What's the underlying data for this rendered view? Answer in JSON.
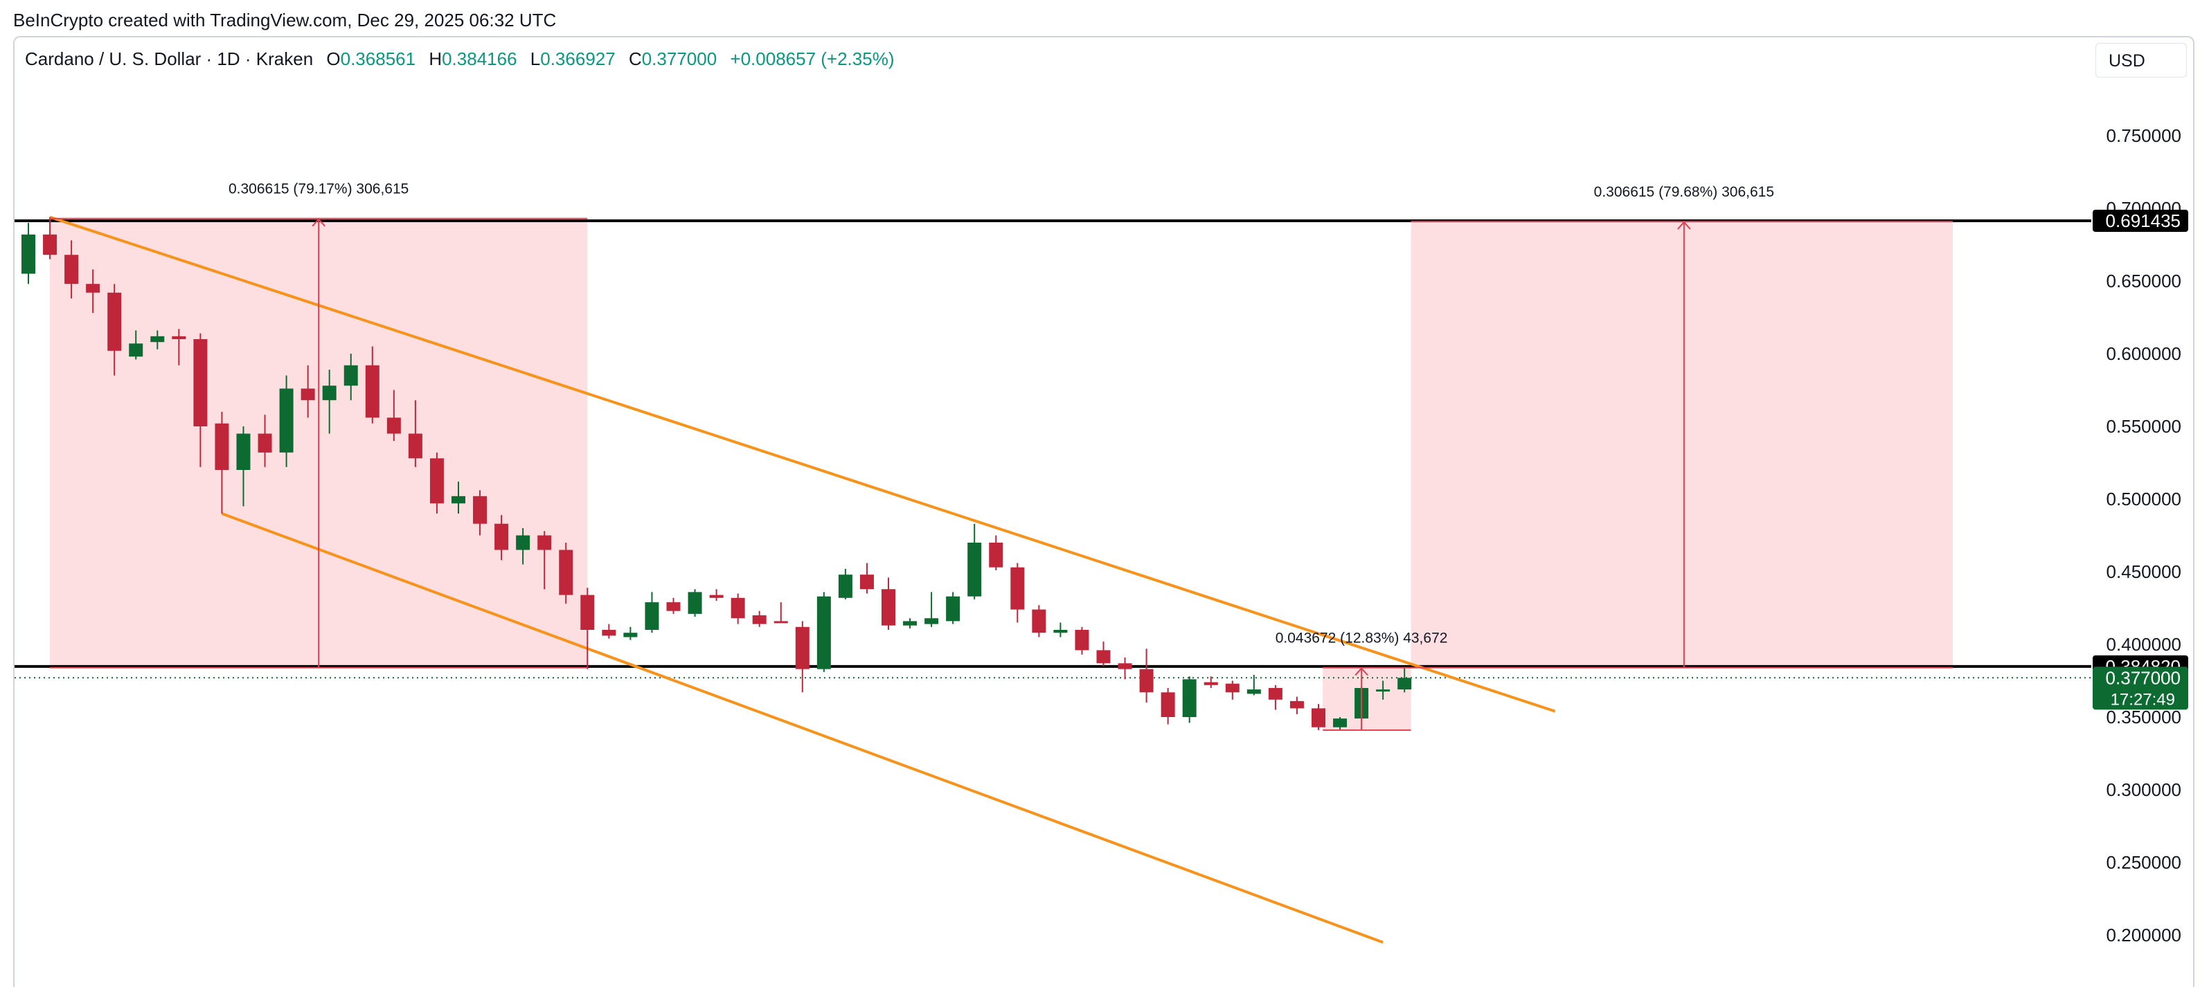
{
  "credit": "BeInCrypto created with TradingView.com, Dec 29, 2025 06:32 UTC",
  "header": {
    "symbol": "Cardano / U. S. Dollar · 1D · Kraken",
    "o_label": "O",
    "o_value": "0.368561",
    "h_label": "H",
    "h_value": "0.384166",
    "l_label": "L",
    "l_value": "0.366927",
    "c_label": "C",
    "c_value": "0.377000",
    "change": "+0.008657 (+2.35%)",
    "currency": "USD"
  },
  "colors": {
    "up": "#0d6b32",
    "down": "#c0263a",
    "channel": "#f7931a",
    "zone": "#fddfe2",
    "measure": "#e0404f",
    "price_label": "#0d6b32"
  },
  "chart_data": {
    "type": "candlestick",
    "title": "Cardano / U. S. Dollar · 1D · Kraken",
    "y_axis": {
      "ticks": [
        "0.750000",
        "0.700000",
        "0.650000",
        "0.600000",
        "0.550000",
        "0.500000",
        "0.450000",
        "0.400000",
        "0.350000",
        "0.300000",
        "0.250000",
        "0.200000"
      ],
      "ylim": [
        0.17,
        0.78
      ]
    },
    "candles": [
      {
        "o": 0.655,
        "h": 0.69,
        "l": 0.648,
        "c": 0.682
      },
      {
        "o": 0.682,
        "h": 0.694,
        "l": 0.665,
        "c": 0.668
      },
      {
        "o": 0.668,
        "h": 0.678,
        "l": 0.638,
        "c": 0.648
      },
      {
        "o": 0.648,
        "h": 0.658,
        "l": 0.628,
        "c": 0.642
      },
      {
        "o": 0.642,
        "h": 0.648,
        "l": 0.585,
        "c": 0.602
      },
      {
        "o": 0.598,
        "h": 0.616,
        "l": 0.596,
        "c": 0.607
      },
      {
        "o": 0.608,
        "h": 0.616,
        "l": 0.603,
        "c": 0.612
      },
      {
        "o": 0.612,
        "h": 0.617,
        "l": 0.592,
        "c": 0.61
      },
      {
        "o": 0.61,
        "h": 0.614,
        "l": 0.522,
        "c": 0.55
      },
      {
        "o": 0.552,
        "h": 0.56,
        "l": 0.49,
        "c": 0.52
      },
      {
        "o": 0.52,
        "h": 0.55,
        "l": 0.495,
        "c": 0.545
      },
      {
        "o": 0.545,
        "h": 0.558,
        "l": 0.522,
        "c": 0.532
      },
      {
        "o": 0.532,
        "h": 0.585,
        "l": 0.522,
        "c": 0.576
      },
      {
        "o": 0.576,
        "h": 0.592,
        "l": 0.556,
        "c": 0.568
      },
      {
        "o": 0.568,
        "h": 0.589,
        "l": 0.545,
        "c": 0.578
      },
      {
        "o": 0.578,
        "h": 0.6,
        "l": 0.568,
        "c": 0.592
      },
      {
        "o": 0.592,
        "h": 0.605,
        "l": 0.552,
        "c": 0.556
      },
      {
        "o": 0.556,
        "h": 0.575,
        "l": 0.54,
        "c": 0.545
      },
      {
        "o": 0.545,
        "h": 0.568,
        "l": 0.522,
        "c": 0.528
      },
      {
        "o": 0.528,
        "h": 0.532,
        "l": 0.49,
        "c": 0.497
      },
      {
        "o": 0.497,
        "h": 0.512,
        "l": 0.49,
        "c": 0.502
      },
      {
        "o": 0.502,
        "h": 0.506,
        "l": 0.475,
        "c": 0.483
      },
      {
        "o": 0.483,
        "h": 0.489,
        "l": 0.458,
        "c": 0.465
      },
      {
        "o": 0.465,
        "h": 0.48,
        "l": 0.455,
        "c": 0.475
      },
      {
        "o": 0.475,
        "h": 0.478,
        "l": 0.438,
        "c": 0.465
      },
      {
        "o": 0.465,
        "h": 0.47,
        "l": 0.428,
        "c": 0.434
      },
      {
        "o": 0.434,
        "h": 0.439,
        "l": 0.383,
        "c": 0.41
      },
      {
        "o": 0.41,
        "h": 0.414,
        "l": 0.404,
        "c": 0.406
      },
      {
        "o": 0.405,
        "h": 0.412,
        "l": 0.403,
        "c": 0.408
      },
      {
        "o": 0.41,
        "h": 0.436,
        "l": 0.408,
        "c": 0.429
      },
      {
        "o": 0.429,
        "h": 0.432,
        "l": 0.421,
        "c": 0.423
      },
      {
        "o": 0.421,
        "h": 0.438,
        "l": 0.419,
        "c": 0.436
      },
      {
        "o": 0.434,
        "h": 0.438,
        "l": 0.43,
        "c": 0.432
      },
      {
        "o": 0.432,
        "h": 0.435,
        "l": 0.414,
        "c": 0.418
      },
      {
        "o": 0.42,
        "h": 0.423,
        "l": 0.412,
        "c": 0.414
      },
      {
        "o": 0.416,
        "h": 0.429,
        "l": 0.416,
        "c": 0.415
      },
      {
        "o": 0.412,
        "h": 0.416,
        "l": 0.367,
        "c": 0.383
      },
      {
        "o": 0.383,
        "h": 0.436,
        "l": 0.381,
        "c": 0.433
      },
      {
        "o": 0.432,
        "h": 0.452,
        "l": 0.431,
        "c": 0.448
      },
      {
        "o": 0.448,
        "h": 0.456,
        "l": 0.435,
        "c": 0.438
      },
      {
        "o": 0.438,
        "h": 0.446,
        "l": 0.41,
        "c": 0.413
      },
      {
        "o": 0.413,
        "h": 0.418,
        "l": 0.411,
        "c": 0.416
      },
      {
        "o": 0.414,
        "h": 0.436,
        "l": 0.412,
        "c": 0.418
      },
      {
        "o": 0.416,
        "h": 0.436,
        "l": 0.414,
        "c": 0.433
      },
      {
        "o": 0.433,
        "h": 0.483,
        "l": 0.431,
        "c": 0.47
      },
      {
        "o": 0.47,
        "h": 0.475,
        "l": 0.451,
        "c": 0.453
      },
      {
        "o": 0.453,
        "h": 0.456,
        "l": 0.415,
        "c": 0.424
      },
      {
        "o": 0.424,
        "h": 0.427,
        "l": 0.405,
        "c": 0.408
      },
      {
        "o": 0.408,
        "h": 0.415,
        "l": 0.405,
        "c": 0.41
      },
      {
        "o": 0.41,
        "h": 0.412,
        "l": 0.393,
        "c": 0.396
      },
      {
        "o": 0.396,
        "h": 0.402,
        "l": 0.385,
        "c": 0.387
      },
      {
        "o": 0.387,
        "h": 0.391,
        "l": 0.376,
        "c": 0.383
      },
      {
        "o": 0.383,
        "h": 0.397,
        "l": 0.36,
        "c": 0.367
      },
      {
        "o": 0.367,
        "h": 0.37,
        "l": 0.345,
        "c": 0.35
      },
      {
        "o": 0.35,
        "h": 0.378,
        "l": 0.346,
        "c": 0.376
      },
      {
        "o": 0.374,
        "h": 0.378,
        "l": 0.37,
        "c": 0.372
      },
      {
        "o": 0.373,
        "h": 0.375,
        "l": 0.362,
        "c": 0.367
      },
      {
        "o": 0.366,
        "h": 0.379,
        "l": 0.365,
        "c": 0.369
      },
      {
        "o": 0.37,
        "h": 0.372,
        "l": 0.355,
        "c": 0.362
      },
      {
        "o": 0.361,
        "h": 0.364,
        "l": 0.352,
        "c": 0.356
      },
      {
        "o": 0.356,
        "h": 0.359,
        "l": 0.341,
        "c": 0.343
      },
      {
        "o": 0.343,
        "h": 0.35,
        "l": 0.341,
        "c": 0.349
      },
      {
        "o": 0.349,
        "h": 0.371,
        "l": 0.341,
        "c": 0.37
      },
      {
        "o": 0.368,
        "h": 0.375,
        "l": 0.362,
        "c": 0.369
      },
      {
        "o": 0.369,
        "h": 0.384,
        "l": 0.367,
        "c": 0.377
      }
    ],
    "levels": [
      {
        "value": 0.691435,
        "label": "0.691435"
      },
      {
        "value": 0.38482,
        "label": "0.384820"
      }
    ],
    "current_price": {
      "value": 0.377,
      "label": "0.377000",
      "countdown": "17:27:49"
    },
    "channel": {
      "upper": [
        [
          1,
          0.694
        ],
        [
          71,
          0.354
        ]
      ],
      "lower": [
        [
          9,
          0.49
        ],
        [
          63,
          0.195
        ]
      ]
    },
    "measurements": [
      {
        "label": "0.306615 (79.17%) 306,615",
        "from_bar": 1,
        "to_bar": 26,
        "low": 0.384,
        "high": 0.693,
        "arrow_bar": 13.5
      },
      {
        "label": "0.306615 (79.68%) 306,615",
        "from_bar": 64.3,
        "to_bar": 89.5,
        "low": 0.384,
        "high": 0.691,
        "arrow_bar": 77
      },
      {
        "label": "0.043672 (12.83%) 43,672",
        "from_bar": 60.2,
        "to_bar": 64.3,
        "low": 0.341,
        "high": 0.384,
        "arrow_bar": 62
      }
    ]
  }
}
